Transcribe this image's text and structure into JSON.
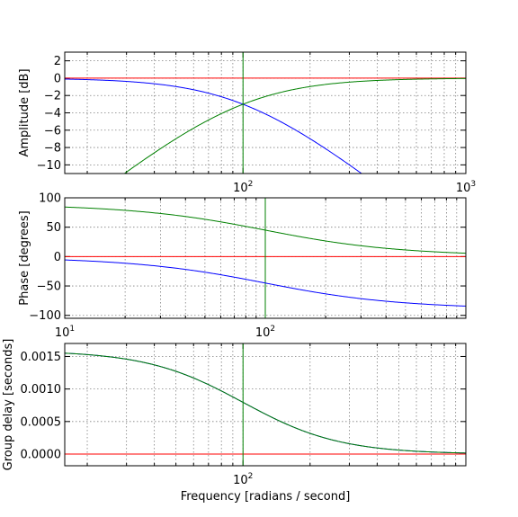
{
  "chart_data": [
    {
      "type": "line",
      "ylabel": "Amplitude [dB]",
      "xscale": "log",
      "xlim": [
        15.85,
        1000
      ],
      "ylim": [
        -11,
        3
      ],
      "grid": true,
      "xticks": [
        {
          "value": 100,
          "base": "10",
          "exp": "2"
        },
        {
          "value": 1000,
          "base": "10",
          "exp": "3"
        }
      ],
      "yticks": [
        {
          "value": 2,
          "label": "2"
        },
        {
          "value": 0,
          "label": "0"
        },
        {
          "value": -2,
          "label": "−2"
        },
        {
          "value": -4,
          "label": "−4"
        },
        {
          "value": -6,
          "label": "−6"
        },
        {
          "value": -8,
          "label": "−8"
        },
        {
          "value": -10,
          "label": "−10"
        }
      ],
      "hlines": [
        {
          "y": 0,
          "color": "#ff0000"
        }
      ],
      "vlines": [
        {
          "x": 100,
          "color": "#008000"
        }
      ],
      "series": [
        {
          "color": "#0000ff",
          "kind": "lowpass_amplitude",
          "wc": 100
        },
        {
          "color": "#008000",
          "kind": "highpass_amplitude",
          "wc": 100
        }
      ]
    },
    {
      "type": "line",
      "ylabel": "Phase [degrees]",
      "xscale": "log",
      "xlim": [
        10,
        1000
      ],
      "ylim": [
        -105,
        100
      ],
      "grid": true,
      "xticks": [
        {
          "value": 10,
          "base": "10",
          "exp": "1"
        },
        {
          "value": 100,
          "base": "10",
          "exp": "2"
        }
      ],
      "yticks": [
        {
          "value": 100,
          "label": "100"
        },
        {
          "value": 50,
          "label": "50"
        },
        {
          "value": 0,
          "label": "0"
        },
        {
          "value": -50,
          "label": "−50"
        },
        {
          "value": -100,
          "label": "−100"
        }
      ],
      "hlines": [
        {
          "y": 0,
          "color": "#ff0000"
        }
      ],
      "vlines": [
        {
          "x": 100,
          "color": "#008000"
        }
      ],
      "series": [
        {
          "color": "#0000ff",
          "kind": "lowpass_phase",
          "wc": 100
        },
        {
          "color": "#008000",
          "kind": "highpass_phase",
          "wc": 100
        }
      ]
    },
    {
      "type": "line",
      "ylabel": "Group delay [seconds]",
      "xlabel": "Frequency [radians / second]",
      "xscale": "log",
      "xlim": [
        15.85,
        1000
      ],
      "ylim": [
        -0.00018,
        0.0017
      ],
      "grid": true,
      "xticks": [
        {
          "value": 100,
          "base": "10",
          "exp": "2"
        }
      ],
      "yticks": [
        {
          "value": 0.0015,
          "label": "0.0015"
        },
        {
          "value": 0.001,
          "label": "0.0010"
        },
        {
          "value": 0.0005,
          "label": "0.0005"
        },
        {
          "value": 0.0,
          "label": "0.0000"
        }
      ],
      "hlines": [
        {
          "y": 0,
          "color": "#ff0000"
        }
      ],
      "vlines": [
        {
          "x": 100,
          "color": "#008000"
        }
      ],
      "series": [
        {
          "color": "#0000ff",
          "kind": "group_delay",
          "wc": 100,
          "y0": 0.00159
        },
        {
          "color": "#008000",
          "kind": "group_delay",
          "wc": 100,
          "y0": 0.00159
        }
      ]
    }
  ]
}
